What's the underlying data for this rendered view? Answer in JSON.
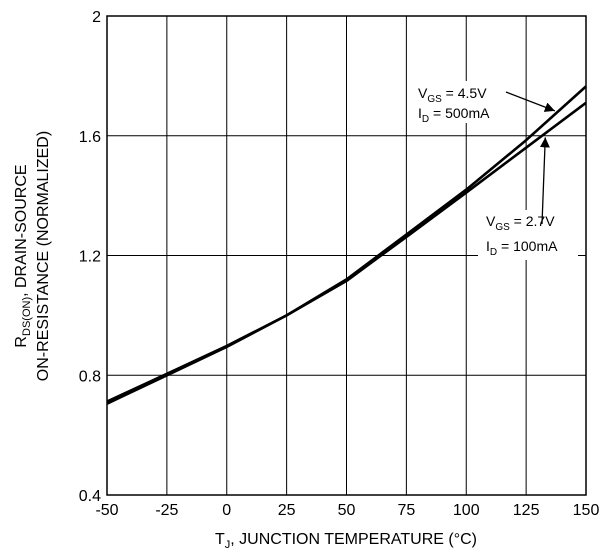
{
  "chart_data": {
    "type": "line",
    "title": "",
    "xlabel": {
      "pre": "T",
      "sub": "J",
      "post": ", JUNCTION TEMPERATURE (°C)"
    },
    "ylabel": {
      "line1_pre": "R",
      "line1_sub": "DS(ON)",
      "line1_post": ", DRAIN-SOURCE",
      "line2": "ON-RESISTANCE (NORMALIZED)"
    },
    "xlim": [
      -50,
      150
    ],
    "ylim": [
      0.4,
      2.0
    ],
    "xticks": [
      -50,
      -25,
      0,
      25,
      50,
      75,
      100,
      125,
      150
    ],
    "yticks": [
      0.4,
      0.8,
      1.2,
      1.6,
      2.0
    ],
    "xtick_labels": [
      "-50",
      "-25",
      "0",
      "25",
      "50",
      "75",
      "100",
      "125",
      "150"
    ],
    "ytick_labels": [
      "0.4",
      "0.8",
      "1.2",
      "1.6",
      "2"
    ],
    "grid": true,
    "series": [
      {
        "annotation": {
          "line1_pre": "V",
          "line1_sub": "GS",
          "line1_post": " = 4.5V",
          "line2_pre": "I",
          "line2_sub": "D",
          "line2_post": " = 500mA"
        },
        "x": [
          -50,
          -25,
          0,
          25,
          50,
          75,
          100,
          125,
          150
        ],
        "y": [
          0.705,
          0.8,
          0.895,
          1.0,
          1.12,
          1.27,
          1.42,
          1.585,
          1.765
        ]
      },
      {
        "annotation": {
          "line1_pre": "V",
          "line1_sub": "GS",
          "line1_post": " = 2.7V",
          "line2_pre": "I",
          "line2_sub": "D",
          "line2_post": " = 100mA"
        },
        "x": [
          -50,
          -25,
          0,
          25,
          50,
          75,
          100,
          125,
          150
        ],
        "y": [
          0.712,
          0.805,
          0.898,
          1.0,
          1.115,
          1.262,
          1.41,
          1.56,
          1.71
        ]
      }
    ]
  }
}
